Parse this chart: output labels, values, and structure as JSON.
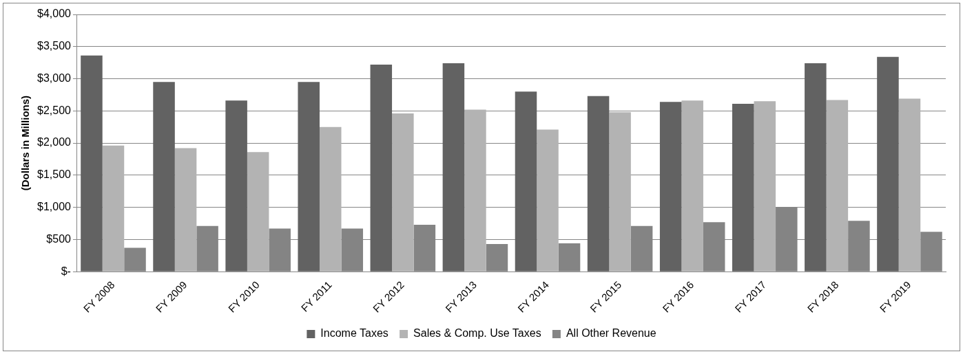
{
  "chart_data": {
    "type": "bar",
    "ylabel": "(Dollars in Millions)",
    "categories": [
      "FY 2008",
      "FY 2009",
      "FY 2010",
      "FY 2011",
      "FY 2012",
      "FY 2013",
      "FY 2014",
      "FY 2015",
      "FY 2016",
      "FY 2017",
      "FY 2018",
      "FY 2019"
    ],
    "series": [
      {
        "name": "Income Taxes",
        "color": "#626262",
        "values": [
          3360,
          2950,
          2660,
          2950,
          3220,
          3240,
          2800,
          2730,
          2640,
          2610,
          3240,
          3340
        ]
      },
      {
        "name": "Sales & Comp. Use Taxes",
        "color": "#b3b3b3",
        "values": [
          1960,
          1920,
          1860,
          2250,
          2460,
          2520,
          2210,
          2480,
          2660,
          2650,
          2670,
          2690
        ]
      },
      {
        "name": "All Other Revenue",
        "color": "#848484",
        "values": [
          370,
          710,
          670,
          670,
          730,
          430,
          440,
          710,
          770,
          1000,
          790,
          620
        ]
      }
    ],
    "ylim": [
      0,
      4000
    ],
    "yticks": [
      {
        "value": 0,
        "label": "$-"
      },
      {
        "value": 500,
        "label": "$500"
      },
      {
        "value": 1000,
        "label": "$1,000"
      },
      {
        "value": 1500,
        "label": "$1,500"
      },
      {
        "value": 2000,
        "label": "$2,000"
      },
      {
        "value": 2500,
        "label": "$2,500"
      },
      {
        "value": 3000,
        "label": "$3,000"
      },
      {
        "value": 3500,
        "label": "$3,500"
      },
      {
        "value": 4000,
        "label": "$4,000"
      }
    ],
    "grid": "y",
    "legend": "bottom"
  }
}
